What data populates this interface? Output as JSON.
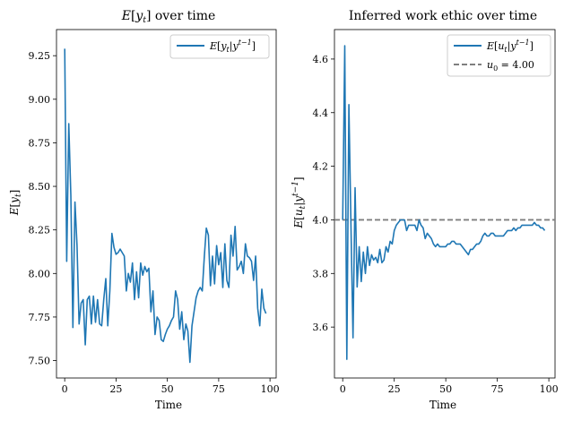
{
  "chart_data": [
    {
      "type": "line",
      "title": "E[y_t] over time",
      "xlabel": "Time",
      "ylabel": "E[y_t]",
      "xlim": [
        -4,
        103
      ],
      "ylim": [
        7.4,
        9.4
      ],
      "xticks": [
        0,
        25,
        50,
        75,
        100
      ],
      "yticks": [
        7.5,
        7.75,
        8.0,
        8.25,
        8.5,
        8.75,
        9.0,
        9.25
      ],
      "ytick_labels": [
        "7.50",
        "7.75",
        "8.00",
        "8.25",
        "8.50",
        "8.75",
        "9.00",
        "9.25"
      ],
      "legend_position": "top-right",
      "grid": false,
      "series": [
        {
          "name": "E[y_t | y^{t-1}]",
          "color": "#1f77b4",
          "x": [
            0,
            1,
            2,
            3,
            4,
            5,
            6,
            7,
            8,
            9,
            10,
            11,
            12,
            13,
            14,
            15,
            16,
            17,
            18,
            19,
            20,
            21,
            22,
            23,
            24,
            25,
            26,
            27,
            28,
            29,
            30,
            31,
            32,
            33,
            34,
            35,
            36,
            37,
            38,
            39,
            40,
            41,
            42,
            43,
            44,
            45,
            46,
            47,
            48,
            49,
            50,
            51,
            52,
            53,
            54,
            55,
            56,
            57,
            58,
            59,
            60,
            61,
            62,
            63,
            64,
            65,
            66,
            67,
            68,
            69,
            70,
            71,
            72,
            73,
            74,
            75,
            76,
            77,
            78,
            79,
            80,
            81,
            82,
            83,
            84,
            85,
            86,
            87,
            88,
            89,
            90,
            91,
            92,
            93,
            94,
            95,
            96,
            97,
            98
          ],
          "values": [
            9.29,
            8.07,
            8.86,
            8.45,
            7.69,
            8.41,
            8.16,
            7.71,
            7.83,
            7.85,
            7.59,
            7.85,
            7.87,
            7.71,
            7.87,
            7.72,
            7.85,
            7.71,
            7.7,
            7.85,
            7.97,
            7.7,
            7.9,
            8.23,
            8.15,
            8.11,
            8.12,
            8.14,
            8.12,
            8.1,
            7.9,
            8.0,
            7.95,
            8.06,
            7.85,
            8.01,
            7.86,
            8.06,
            7.99,
            8.04,
            8.01,
            8.03,
            7.78,
            7.9,
            7.65,
            7.75,
            7.73,
            7.62,
            7.61,
            7.65,
            7.68,
            7.7,
            7.73,
            7.75,
            7.9,
            7.85,
            7.68,
            7.78,
            7.62,
            7.71,
            7.67,
            7.49,
            7.7,
            7.78,
            7.86,
            7.9,
            7.92,
            7.9,
            8.1,
            8.26,
            8.22,
            7.93,
            8.1,
            7.94,
            8.16,
            8.05,
            8.12,
            7.92,
            8.17,
            7.96,
            7.92,
            8.22,
            8.1,
            8.27,
            8.02,
            8.04,
            8.07,
            8.0,
            8.17,
            8.1,
            8.09,
            8.07,
            7.96,
            8.1,
            7.8,
            7.7,
            7.91,
            7.8,
            7.77
          ]
        }
      ]
    },
    {
      "type": "line",
      "title": "Inferred work ethic over time",
      "xlabel": "Time",
      "ylabel": "E[u_t | y^{t-1}]",
      "xlim": [
        -4,
        103
      ],
      "ylim": [
        3.41,
        4.71
      ],
      "xticks": [
        0,
        25,
        50,
        75,
        100
      ],
      "yticks": [
        3.6,
        3.8,
        4.0,
        4.2,
        4.4,
        4.6
      ],
      "ytick_labels": [
        "3.6",
        "3.8",
        "4.0",
        "4.2",
        "4.4",
        "4.6"
      ],
      "legend_position": "top-right",
      "grid": false,
      "hline": {
        "y": 4.0,
        "name": "u_0 = 4.00",
        "color": "#7f7f7f",
        "style": "dashed"
      },
      "series": [
        {
          "name": "E[u_t | y^{t-1}]",
          "color": "#1f77b4",
          "x": [
            0,
            1,
            2,
            3,
            4,
            5,
            6,
            7,
            8,
            9,
            10,
            11,
            12,
            13,
            14,
            15,
            16,
            17,
            18,
            19,
            20,
            21,
            22,
            23,
            24,
            25,
            26,
            27,
            28,
            29,
            30,
            31,
            32,
            33,
            34,
            35,
            36,
            37,
            38,
            39,
            40,
            41,
            42,
            43,
            44,
            45,
            46,
            47,
            48,
            49,
            50,
            51,
            52,
            53,
            54,
            55,
            56,
            57,
            58,
            59,
            60,
            61,
            62,
            63,
            64,
            65,
            66,
            67,
            68,
            69,
            70,
            71,
            72,
            73,
            74,
            75,
            76,
            77,
            78,
            79,
            80,
            81,
            82,
            83,
            84,
            85,
            86,
            87,
            88,
            89,
            90,
            91,
            92,
            93,
            94,
            95,
            96,
            97,
            98
          ],
          "values": [
            4.0,
            4.65,
            3.48,
            4.43,
            3.98,
            3.56,
            4.12,
            3.75,
            3.9,
            3.77,
            3.88,
            3.8,
            3.9,
            3.83,
            3.87,
            3.85,
            3.86,
            3.84,
            3.89,
            3.84,
            3.85,
            3.9,
            3.88,
            3.92,
            3.91,
            3.96,
            3.98,
            3.99,
            4.0,
            4.0,
            4.0,
            3.96,
            3.98,
            3.98,
            3.98,
            3.98,
            3.96,
            4.0,
            3.98,
            3.97,
            3.93,
            3.95,
            3.94,
            3.93,
            3.91,
            3.9,
            3.91,
            3.9,
            3.9,
            3.9,
            3.9,
            3.91,
            3.91,
            3.92,
            3.92,
            3.91,
            3.91,
            3.91,
            3.9,
            3.89,
            3.88,
            3.87,
            3.89,
            3.89,
            3.9,
            3.91,
            3.91,
            3.92,
            3.94,
            3.95,
            3.94,
            3.94,
            3.95,
            3.95,
            3.94,
            3.94,
            3.94,
            3.94,
            3.94,
            3.95,
            3.96,
            3.96,
            3.96,
            3.97,
            3.96,
            3.97,
            3.97,
            3.98,
            3.98,
            3.98,
            3.98,
            3.98,
            3.98,
            3.99,
            3.98,
            3.98,
            3.97,
            3.97,
            3.96
          ]
        }
      ]
    }
  ]
}
